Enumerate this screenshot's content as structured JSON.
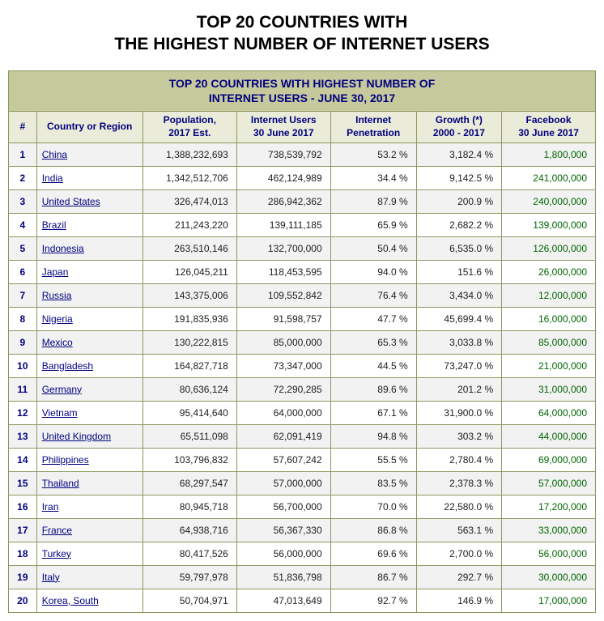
{
  "page_title": "TOP 20 COUNTRIES WITH\nTHE HIGHEST NUMBER OF INTERNET USERS",
  "table_header": "TOP 20 COUNTRIES WITH HIGHEST NUMBER OF\nINTERNET USERS - JUNE 30, 2017",
  "columns": {
    "rank": "#",
    "country": "Country or Region",
    "population": "Population,\n2017 Est.",
    "users": "Internet Users\n30 June 2017",
    "penetration": "Internet\nPenetration",
    "growth": "Growth (*)\n2000 - 2017",
    "facebook": "Facebook\n30 June 2017"
  },
  "colors": {
    "header_band_bg": "#c6c99c",
    "colhead_bg": "#eaebd8",
    "border": "#8a9961",
    "link": "#000080",
    "fb": "#006600",
    "row_even": "#f2f2f2",
    "row_odd": "#ffffff"
  },
  "rows": [
    {
      "rank": "1",
      "country": "China",
      "population": "1,388,232,693",
      "users": "738,539,792",
      "penetration": "53.2 %",
      "growth": "3,182.4 %",
      "facebook": "1,800,000"
    },
    {
      "rank": "2",
      "country": "India",
      "population": "1,342,512,706",
      "users": "462,124,989",
      "penetration": "34.4 %",
      "growth": "9,142.5 %",
      "facebook": "241,000,000"
    },
    {
      "rank": "3",
      "country": "United States",
      "population": "326,474,013",
      "users": "286,942,362",
      "penetration": "87.9 %",
      "growth": "200.9 %",
      "facebook": "240,000,000"
    },
    {
      "rank": "4",
      "country": "Brazil",
      "population": "211,243,220",
      "users": "139,111,185",
      "penetration": "65.9 %",
      "growth": "2,682.2 %",
      "facebook": "139,000,000"
    },
    {
      "rank": "5",
      "country": "Indonesia",
      "population": "263,510,146",
      "users": "132,700,000",
      "penetration": "50.4 %",
      "growth": "6,535.0 %",
      "facebook": "126,000,000"
    },
    {
      "rank": "6",
      "country": "Japan",
      "population": "126,045,211",
      "users": "118,453,595",
      "penetration": "94.0 %",
      "growth": "151.6 %",
      "facebook": "26,000,000"
    },
    {
      "rank": "7",
      "country": "Russia",
      "population": "143,375,006",
      "users": "109,552,842",
      "penetration": "76.4 %",
      "growth": "3,434.0 %",
      "facebook": "12,000,000"
    },
    {
      "rank": "8",
      "country": "Nigeria",
      "population": "191,835,936",
      "users": "91,598,757",
      "penetration": "47.7 %",
      "growth": "45,699.4 %",
      "facebook": "16,000,000"
    },
    {
      "rank": "9",
      "country": "Mexico",
      "population": "130,222,815",
      "users": "85,000,000",
      "penetration": "65.3 %",
      "growth": "3,033.8 %",
      "facebook": "85,000,000"
    },
    {
      "rank": "10",
      "country": "Bangladesh",
      "population": "164,827,718",
      "users": "73,347,000",
      "penetration": "44.5 %",
      "growth": "73,247.0 %",
      "facebook": "21,000,000"
    },
    {
      "rank": "11",
      "country": "Germany",
      "population": "80,636,124",
      "users": "72,290,285",
      "penetration": "89.6 %",
      "growth": "201.2 %",
      "facebook": "31,000,000"
    },
    {
      "rank": "12",
      "country": "Vietnam",
      "population": "95,414,640",
      "users": "64,000,000",
      "penetration": "67.1 %",
      "growth": "31,900.0 %",
      "facebook": "64,000,000"
    },
    {
      "rank": "13",
      "country": "United Kingdom",
      "population": "65,511,098",
      "users": "62,091,419",
      "penetration": "94.8 %",
      "growth": "303.2 %",
      "facebook": "44,000,000"
    },
    {
      "rank": "14",
      "country": "Philippines",
      "population": "103,796,832",
      "users": "57,607,242",
      "penetration": "55.5 %",
      "growth": "2,780.4 %",
      "facebook": "69,000,000"
    },
    {
      "rank": "15",
      "country": "Thailand",
      "population": "68,297,547",
      "users": "57,000,000",
      "penetration": "83.5 %",
      "growth": "2,378.3 %",
      "facebook": "57,000,000"
    },
    {
      "rank": "16",
      "country": "Iran",
      "population": "80,945,718",
      "users": "56,700,000",
      "penetration": "70.0 %",
      "growth": "22,580.0 %",
      "facebook": "17,200,000"
    },
    {
      "rank": "17",
      "country": "France",
      "population": "64,938,716",
      "users": "56,367,330",
      "penetration": "86.8 %",
      "growth": "563.1 %",
      "facebook": "33,000,000"
    },
    {
      "rank": "18",
      "country": "Turkey",
      "population": "80,417,526",
      "users": "56,000,000",
      "penetration": "69.6 %",
      "growth": "2,700.0 %",
      "facebook": "56,000,000"
    },
    {
      "rank": "19",
      "country": "Italy",
      "population": "59,797,978",
      "users": "51,836,798",
      "penetration": "86.7 %",
      "growth": "292.7 %",
      "facebook": "30,000,000"
    },
    {
      "rank": "20",
      "country": "Korea, South",
      "population": "50,704,971",
      "users": "47,013,649",
      "penetration": "92.7 %",
      "growth": "146.9 %",
      "facebook": "17,000,000"
    }
  ]
}
